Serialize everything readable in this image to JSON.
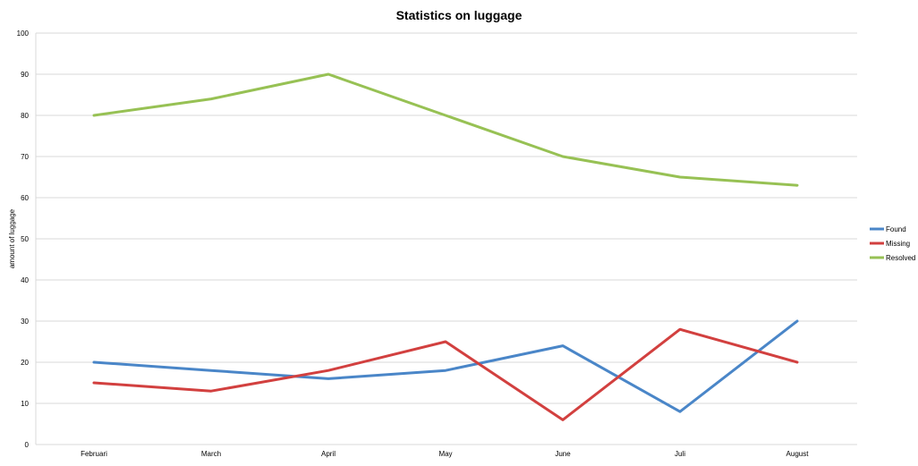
{
  "chart_data": {
    "type": "line",
    "title": "Statistics on luggage",
    "xlabel": "",
    "ylabel": "amount of luggage",
    "categories": [
      "Februari",
      "March",
      "April",
      "May",
      "June",
      "Juli",
      "August"
    ],
    "ylim": [
      0,
      100
    ],
    "yticks": [
      0,
      10,
      20,
      30,
      40,
      50,
      60,
      70,
      80,
      90,
      100
    ],
    "grid": true,
    "legend_position": "right",
    "series": [
      {
        "name": "Found",
        "color": "#4a86c8",
        "values": [
          20,
          18,
          16,
          18,
          24,
          8,
          30
        ]
      },
      {
        "name": "Missing",
        "color": "#d2403f",
        "values": [
          15,
          13,
          18,
          25,
          6,
          28,
          20
        ]
      },
      {
        "name": "Resolved",
        "color": "#97c154",
        "values": [
          80,
          84,
          90,
          80,
          70,
          65,
          63
        ]
      }
    ]
  }
}
